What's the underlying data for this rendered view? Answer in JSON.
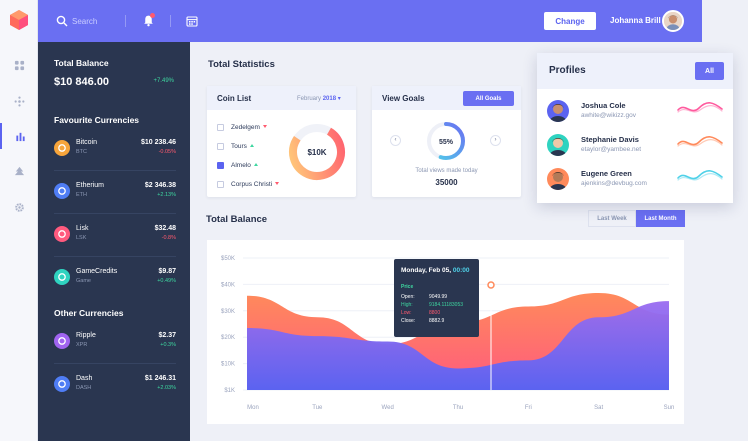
{
  "colors": {
    "accent": "#6a6ff2",
    "sidebar": "#2a3650",
    "positive": "#3ed7a0",
    "negative": "#ff5a6e",
    "orange": "#ff8a5b"
  },
  "rail": {
    "items": [
      "grid-icon",
      "sparkle-icon",
      "bar-chart-icon",
      "tree-icon",
      "gear-icon"
    ],
    "active": "bar-chart-icon"
  },
  "header": {
    "search_placeholder": "Search",
    "change_label": "Change",
    "user_name": "Johanna Brill"
  },
  "sidebar": {
    "total_balance_title": "Total Balance",
    "total_balance_value": "$10 846.00",
    "total_balance_change": "+7.49%",
    "favourite_title": "Favourite Currencies",
    "favourites": [
      {
        "name": "Bitcoin",
        "symbol": "BTC",
        "value": "$10 238.46",
        "change": "-0.05%",
        "color": "#f7a53b",
        "icon": "bitcoin-icon"
      },
      {
        "name": "Etherium",
        "symbol": "ETH",
        "value": "$2 346.38",
        "change": "+2.13%",
        "color": "#4f7df5",
        "icon": "ethereum-icon"
      },
      {
        "name": "Lisk",
        "symbol": "LSK",
        "value": "$32.48",
        "change": "-0.8%",
        "color": "#ff5a7e",
        "icon": "lisk-icon"
      },
      {
        "name": "GameCredits",
        "symbol": "Game",
        "value": "$9.87",
        "change": "+0.49%",
        "color": "#2fd3c0",
        "icon": "gamecredits-icon"
      }
    ],
    "other_title": "Other Currencies",
    "others": [
      {
        "name": "Ripple",
        "symbol": "XPR",
        "value": "$2.37",
        "change": "+0.3%",
        "color": "#a064f0",
        "icon": "ripple-icon"
      },
      {
        "name": "Dash",
        "symbol": "DASH",
        "value": "$1 246.31",
        "change": "+2.03%",
        "color": "#4f7df5",
        "icon": "dash-icon"
      }
    ]
  },
  "main": {
    "total_statistics_title": "Total Statistics",
    "coin_list": {
      "title": "Coin List",
      "month": "February",
      "year": "2018",
      "items": [
        {
          "name": "Zedelgem",
          "checked": false,
          "trend": "down"
        },
        {
          "name": "Tours",
          "checked": false,
          "trend": "up"
        },
        {
          "name": "Almelo",
          "checked": true,
          "trend": "up"
        },
        {
          "name": "Corpus Christi",
          "checked": false,
          "trend": "down"
        }
      ],
      "donut_label": "$10K"
    },
    "view_goals": {
      "title": "View Goals",
      "button_label": "All Goals",
      "percent_label": "55%",
      "percent": 55,
      "caption": "Total views made today",
      "count": "35000"
    },
    "total_balance_title": "Total Balance",
    "period_tabs": [
      {
        "label": "Last Week",
        "active": false
      },
      {
        "label": "Last Month",
        "active": true
      }
    ]
  },
  "profiles": {
    "title": "Profiles",
    "all_label": "All",
    "people": [
      {
        "name": "Joshua Cole",
        "email": "awhite@wikizz.gov",
        "wave": "#ff5a9e"
      },
      {
        "name": "Stephanie Davis",
        "email": "etaylor@yambee.net",
        "wave": "#ff8a5b"
      },
      {
        "name": "Eugene Green",
        "email": "ajenkins@devbug.com",
        "wave": "#4fd1e8"
      }
    ]
  },
  "tooltip": {
    "date": "Monday, Feb 05,",
    "time": "00:00",
    "section": "Price",
    "rows": [
      {
        "label": "Open:",
        "value": "9049.99",
        "color": "#ffffff"
      },
      {
        "label": "High:",
        "value": "9184.11183053",
        "color": "#3ed7a0"
      },
      {
        "label": "Low:",
        "value": "8800",
        "color": "#ff5a6e"
      },
      {
        "label": "Close:",
        "value": "8882.9",
        "color": "#ffffff"
      }
    ]
  },
  "chart_data": {
    "type": "area",
    "categories": [
      "Mon",
      "Tue",
      "Wed",
      "Thu",
      "Fri",
      "Sat",
      "Sun"
    ],
    "y_ticks": [
      "$50K",
      "$40K",
      "$30K",
      "$20K",
      "$10K",
      "$1K"
    ],
    "ylim": [
      1,
      50
    ],
    "series": [
      {
        "values": [
          36,
          28,
          18,
          26,
          32,
          37,
          29
        ],
        "color": "#ff8a5b"
      },
      {
        "values": [
          24,
          21,
          19,
          9,
          12,
          28,
          34
        ],
        "color": "#6a6ff2"
      }
    ],
    "grid": true
  }
}
